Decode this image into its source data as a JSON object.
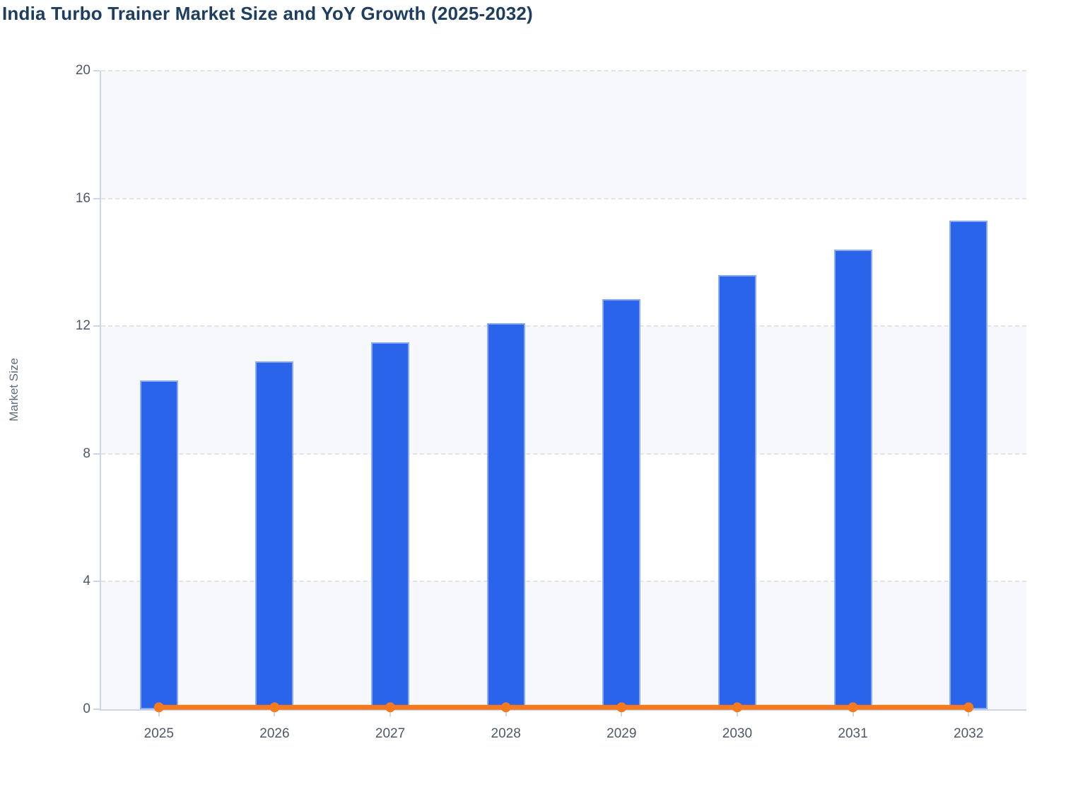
{
  "page": {
    "title": "India Turbo Trainer Market Size and YoY Growth (2025-2032)"
  },
  "chart_data": {
    "type": "bar",
    "subtype": "combo bar+line",
    "title": "India Turbo Trainer Market Size and YoY Growth (2025-2032)",
    "categories": [
      "2025",
      "2026",
      "2027",
      "2028",
      "2029",
      "2030",
      "2031",
      "2032"
    ],
    "series": [
      {
        "name": "Market Size",
        "type": "bar",
        "color": "#2a64ea",
        "values": [
          10.3,
          10.9,
          11.5,
          12.1,
          12.85,
          13.6,
          14.4,
          15.3
        ]
      },
      {
        "name": "YoY Growth",
        "type": "line",
        "color": "#f4791f",
        "values": [
          0.06,
          0.06,
          0.06,
          0.06,
          0.06,
          0.06,
          0.06,
          0.06
        ],
        "note": "flat line with round markers plotted just above zero on the Market Size axis"
      }
    ],
    "xlabel": "",
    "ylabel": "Market Size",
    "ylim": [
      0,
      20
    ],
    "yticks": [
      0,
      4,
      8,
      12,
      16,
      20
    ],
    "grid": "dashed horizontal gridlines every 4 units",
    "plot_bands": "alternating very light bands (0-4, 8-12, 16-20 shaded)",
    "legend_position": "none"
  },
  "colors": {
    "title_text": "#1e3e61",
    "tick_label_text": "#4d5968",
    "axis_title_text": "#5d6c7e",
    "axis_line": "#ccd5ec",
    "gridline": "#e2e3ea",
    "plot_band": "#f7f8fb",
    "bar_fill": "#2a64ea",
    "line_stroke": "#f4791f",
    "background": "#ffffff"
  }
}
